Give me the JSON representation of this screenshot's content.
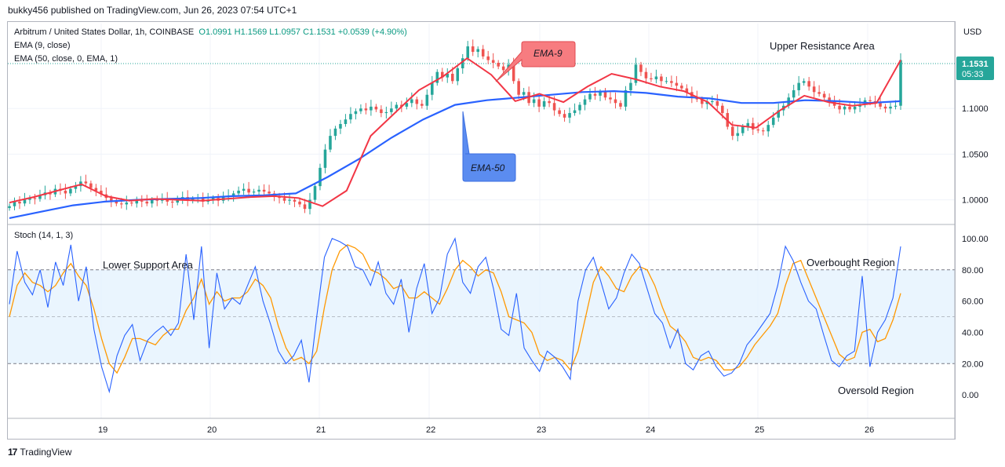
{
  "publisher": "bukky456 published on TradingView.com, Jun 26, 2023 07:54 UTC+1",
  "logo_text": "TradingView",
  "legend": {
    "symbol": "Arbitrum / United States Dollar, 1h, COINBASE",
    "ohlc": "O1.0991  H1.1569  L1.0957  C1.1531  +0.0539 (+4.90%)",
    "ema9": "EMA (9, close)",
    "ema50": "EMA (50, close, 0, EMA, 1)",
    "stoch": "Stoch (14, 1, 3)"
  },
  "price_axis": {
    "currency": "USD",
    "last_price": "1.1531",
    "countdown": "05:33"
  },
  "annotations": {
    "ema9_label": "EMA-9",
    "ema50_label": "EMA-50",
    "upper_resistance": "Upper Resistance Area",
    "lower_support": "Lower Support Area",
    "overbought": "Overbought Region",
    "oversold": "Oversold Region"
  },
  "colors": {
    "up": "#26a69a",
    "down": "#ef5350",
    "ema9": "#f23645",
    "ema50": "#2962ff",
    "stoch_k": "#2962ff",
    "stoch_d": "#ff9800",
    "band": "#e3f2fd"
  },
  "chart_data": [
    {
      "type": "candlestick",
      "title": "Arbitrum / United States Dollar, 1h, COINBASE",
      "ylabel": "USD",
      "ylim": [
        0.973,
        1.193
      ],
      "y_ticks": [
        "1.0000",
        "1.0500",
        "1.1000"
      ],
      "x_ticks": [
        "19",
        "20",
        "21",
        "22",
        "23",
        "24",
        "25",
        "26"
      ],
      "last_close": 1.1531,
      "series": [
        {
          "name": "Price close (approx.)",
          "values": [
            0.993,
            0.998,
            0.996,
            1.0,
            1.002,
            1.001,
            1.005,
            1.008,
            1.006,
            1.012,
            1.01,
            1.007,
            1.012,
            1.015,
            1.02,
            1.018,
            1.013,
            1.01,
            1.006,
            1.002,
            0.998,
            0.996,
            0.995,
            0.997,
            0.996,
            0.999,
            0.998,
            0.996,
            1.0,
            0.999,
            1.001,
            0.998,
            0.997,
            1.0,
            1.003,
            0.999,
            1.001,
            1.002,
            0.998,
            1.0,
            1.002,
            0.999,
            1.003,
            1.004,
            1.007,
            1.01,
            1.012,
            1.008,
            1.009,
            1.011,
            1.009,
            1.007,
            1.003,
            1.002,
            0.999,
            1.0,
            0.998,
            0.995,
            0.99,
            1.0,
            1.015,
            1.035,
            1.055,
            1.07,
            1.078,
            1.083,
            1.088,
            1.094,
            1.097,
            1.1,
            1.098,
            1.102,
            1.099,
            1.095,
            1.096,
            1.1,
            1.104,
            1.102,
            1.106,
            1.11,
            1.105,
            1.103,
            1.115,
            1.128,
            1.14,
            1.134,
            1.138,
            1.13,
            1.144,
            1.155,
            1.168,
            1.162,
            1.165,
            1.157,
            1.153,
            1.15,
            1.146,
            1.142,
            1.148,
            1.13,
            1.115,
            1.118,
            1.106,
            1.11,
            1.102,
            1.108,
            1.106,
            1.098,
            1.094,
            1.09,
            1.095,
            1.098,
            1.104,
            1.11,
            1.116,
            1.114,
            1.118,
            1.112,
            1.11,
            1.106,
            1.102,
            1.12,
            1.128,
            1.148,
            1.14,
            1.133,
            1.132,
            1.135,
            1.13,
            1.13,
            1.128,
            1.125,
            1.122,
            1.118,
            1.112,
            1.11,
            1.105,
            1.107,
            1.108,
            1.103,
            1.095,
            1.08,
            1.07,
            1.073,
            1.08,
            1.084,
            1.077,
            1.076,
            1.075,
            1.082,
            1.09,
            1.098,
            1.103,
            1.112,
            1.12,
            1.128,
            1.13,
            1.124,
            1.118,
            1.116,
            1.112,
            1.108,
            1.103,
            1.099,
            1.102,
            1.099,
            1.102,
            1.104,
            1.109,
            1.108,
            1.107,
            1.102,
            1.1,
            1.102,
            1.103,
            1.153
          ]
        },
        {
          "name": "EMA (9, close)",
          "values": [
            0.997,
            1.003,
            1.01,
            1.017,
            1.004,
            0.999,
            1.001,
            1.0,
            0.999,
            1.001,
            1.003,
            1.004,
            1.002,
            0.993,
            1.01,
            1.07,
            1.095,
            1.12,
            1.135,
            1.155,
            1.137,
            1.108,
            1.116,
            1.107,
            1.124,
            1.138,
            1.132,
            1.124,
            1.119,
            1.107,
            1.082,
            1.079,
            1.098,
            1.114,
            1.107,
            1.103,
            1.106,
            1.153
          ]
        },
        {
          "name": "EMA (50, close, 0, EMA, 1)",
          "values": [
            0.98,
            0.987,
            0.994,
            0.998,
            1.0,
            1.001,
            1.002,
            1.004,
            1.005,
            1.007,
            1.025,
            1.045,
            1.068,
            1.088,
            1.104,
            1.109,
            1.112,
            1.115,
            1.118,
            1.119,
            1.117,
            1.113,
            1.111,
            1.106,
            1.106,
            1.109,
            1.108,
            1.106,
            1.108
          ]
        }
      ]
    },
    {
      "type": "line",
      "title": "Stoch (14, 1, 3)",
      "ylim": [
        -15,
        108
      ],
      "y_ticks": [
        "0.00",
        "20.00",
        "40.00",
        "60.00",
        "80.00",
        "100.00"
      ],
      "reference_lines": [
        20,
        50,
        80
      ],
      "band": [
        20,
        80
      ],
      "series": [
        {
          "name": "%K",
          "values": [
            58,
            92,
            72,
            64,
            80,
            56,
            85,
            70,
            96,
            60,
            82,
            42,
            18,
            2,
            25,
            38,
            45,
            22,
            35,
            40,
            44,
            38,
            46,
            90,
            48,
            95,
            30,
            78,
            55,
            62,
            58,
            70,
            82,
            60,
            45,
            28,
            20,
            25,
            35,
            8,
            50,
            88,
            100,
            98,
            95,
            82,
            80,
            70,
            85,
            65,
            58,
            74,
            40,
            68,
            84,
            52,
            62,
            90,
            100,
            72,
            65,
            82,
            88,
            68,
            42,
            38,
            65,
            30,
            22,
            15,
            28,
            24,
            18,
            10,
            60,
            80,
            88,
            72,
            55,
            62,
            78,
            90,
            84,
            68,
            52,
            46,
            30,
            42,
            20,
            16,
            25,
            28,
            18,
            12,
            14,
            20,
            32,
            38,
            45,
            52,
            70,
            95,
            86,
            72,
            60,
            55,
            38,
            22,
            18,
            25,
            28,
            76,
            18,
            40,
            48,
            62,
            95
          ]
        },
        {
          "name": "%D",
          "values": [
            50,
            70,
            78,
            72,
            70,
            66,
            70,
            78,
            84,
            76,
            70,
            55,
            36,
            20,
            14,
            24,
            36,
            36,
            34,
            32,
            38,
            42,
            42,
            54,
            62,
            74,
            58,
            66,
            60,
            62,
            62,
            66,
            74,
            70,
            62,
            44,
            30,
            22,
            24,
            20,
            28,
            56,
            80,
            92,
            96,
            94,
            90,
            80,
            78,
            74,
            68,
            70,
            62,
            62,
            66,
            62,
            58,
            68,
            80,
            86,
            82,
            76,
            80,
            78,
            66,
            50,
            48,
            46,
            40,
            26,
            22,
            24,
            22,
            16,
            28,
            50,
            72,
            82,
            76,
            68,
            66,
            76,
            82,
            80,
            70,
            56,
            44,
            40,
            34,
            24,
            22,
            24,
            22,
            16,
            16,
            18,
            24,
            32,
            38,
            44,
            52,
            70,
            84,
            86,
            74,
            62,
            50,
            38,
            26,
            22,
            24,
            40,
            42,
            34,
            36,
            48,
            65
          ]
        }
      ]
    }
  ]
}
